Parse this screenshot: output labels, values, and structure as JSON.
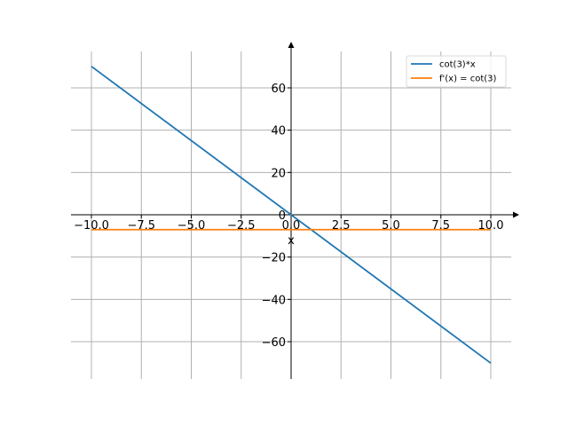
{
  "chart_data": {
    "type": "line",
    "title": "",
    "xlabel": "x",
    "ylabel": "",
    "xlim": [
      -10,
      10
    ],
    "ylim": [
      -75,
      75
    ],
    "grid": true,
    "legend_position": "top-right",
    "x_ticks": [
      {
        "value": -10,
        "label": "−10.0"
      },
      {
        "value": -7.5,
        "label": "−7.5"
      },
      {
        "value": -5,
        "label": "−5.0"
      },
      {
        "value": -2.5,
        "label": "−2.5"
      },
      {
        "value": 0,
        "label": "0.0"
      },
      {
        "value": 2.5,
        "label": "2.5"
      },
      {
        "value": 5,
        "label": "5.0"
      },
      {
        "value": 7.5,
        "label": "7.5"
      },
      {
        "value": 10,
        "label": "10.0"
      }
    ],
    "y_ticks": [
      {
        "value": 60,
        "label": "60"
      },
      {
        "value": 40,
        "label": "40"
      },
      {
        "value": 20,
        "label": "20"
      },
      {
        "value": 0,
        "label": "0"
      },
      {
        "value": -20,
        "label": "−20"
      },
      {
        "value": -40,
        "label": "−40"
      },
      {
        "value": -60,
        "label": "−60"
      }
    ],
    "series": [
      {
        "name": "cot(3)*x",
        "color": "#1f77b4",
        "x": [
          -10,
          10
        ],
        "y": [
          70.15,
          -70.15
        ]
      },
      {
        "name": "f'(x) = cot(3)",
        "color": "#ff7f0e",
        "x": [
          -10,
          10
        ],
        "y": [
          -7.02,
          -7.02
        ]
      }
    ]
  }
}
